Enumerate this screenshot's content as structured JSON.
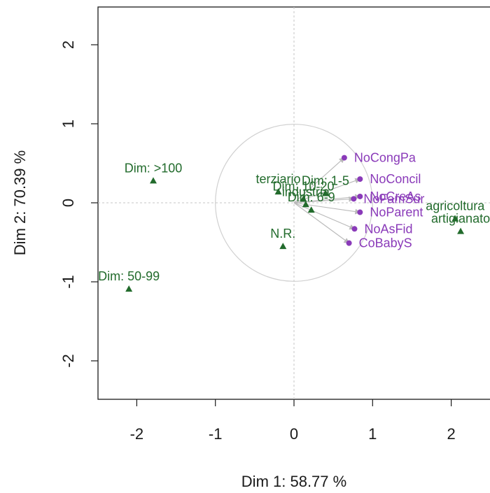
{
  "chart_data": {
    "type": "scatter",
    "xlabel": "Dim 1: 58.77 %",
    "ylabel": "Dim 2: 70.39 %",
    "xlim": [
      -2.5,
      2.5
    ],
    "ylim": [
      -2.5,
      2.5
    ],
    "xticks": [
      -2,
      -1,
      0,
      1,
      2
    ],
    "yticks": [
      -2,
      -1,
      0,
      1,
      2
    ],
    "grid": false,
    "reference_lines": [
      0,
      0
    ],
    "unit_circle": {
      "center": [
        0,
        0
      ],
      "radius": 1
    },
    "colors": {
      "variables": "#8a3ab9",
      "supplementary": "#226b2c",
      "arrows": "#b9b9b9",
      "circle": "#d0d0d0",
      "axes": "#1a1a1a",
      "refline": "#c6c6c6"
    },
    "series": [
      {
        "name": "",
        "marker": "circle",
        "color": "#8a3ab9",
        "arrows": true,
        "points": [
          {
            "label": "NoCongPa",
            "x": 0.64,
            "y": 0.57
          },
          {
            "label": "NoConcil",
            "x": 0.84,
            "y": 0.3
          },
          {
            "label": "NoCreAs",
            "x": 0.84,
            "y": 0.08
          },
          {
            "label": "NoFamSur",
            "x": 0.76,
            "y": 0.05
          },
          {
            "label": "NoParent",
            "x": 0.84,
            "y": -0.12
          },
          {
            "label": "NoAsFid",
            "x": 0.77,
            "y": -0.33
          },
          {
            "label": "CoBabyS",
            "x": 0.7,
            "y": -0.51
          }
        ]
      },
      {
        "name": "",
        "marker": "triangle",
        "color": "#226b2c",
        "arrows": false,
        "points": [
          {
            "label": "Dim: >100",
            "x": -1.79,
            "y": 0.28
          },
          {
            "label": "Dim: 50-99",
            "x": -2.1,
            "y": -1.09
          },
          {
            "label": "N.R.",
            "x": -0.14,
            "y": -0.55
          },
          {
            "label": "terziario",
            "x": -0.2,
            "y": 0.14
          },
          {
            "label": "Dim: 1-5",
            "x": 0.4,
            "y": 0.12
          },
          {
            "label": "Dim: 10-20",
            "x": 0.12,
            "y": 0.05
          },
          {
            "label": "industria",
            "x": 0.15,
            "y": -0.02
          },
          {
            "label": "Dim: 6-9",
            "x": 0.22,
            "y": -0.09
          },
          {
            "label": "agricoltura",
            "x": 2.05,
            "y": -0.2
          },
          {
            "label": "artigianato",
            "x": 2.12,
            "y": -0.36
          }
        ]
      }
    ]
  }
}
